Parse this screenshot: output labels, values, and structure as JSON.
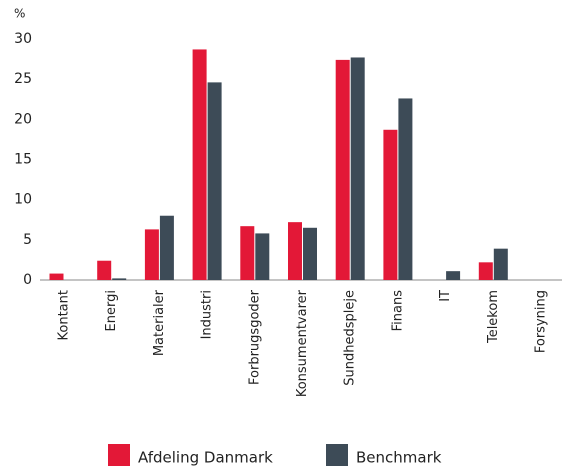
{
  "chart_data": {
    "type": "bar",
    "y_unit": "%",
    "categories": [
      "Kontant",
      "Energi",
      "Materialer",
      "Industri",
      "Forbrugsgoder",
      "Konsumentvarer",
      "Sundhedspleje",
      "Finans",
      "IT",
      "Telekom",
      "Forsyning"
    ],
    "series": [
      {
        "name": "Afdeling Danmark",
        "color": "#e31837",
        "values": [
          0.8,
          2.4,
          6.3,
          28.7,
          6.7,
          7.2,
          27.4,
          18.7,
          0,
          2.2,
          0
        ]
      },
      {
        "name": "Benchmark",
        "color": "#3d4b57",
        "values": [
          0,
          0.2,
          8.0,
          24.6,
          5.8,
          6.5,
          27.7,
          22.6,
          1.1,
          3.9,
          0
        ]
      }
    ],
    "ylim": [
      0,
      30
    ],
    "yticks": [
      0,
      5,
      10,
      15,
      20,
      25,
      30
    ],
    "grid": false,
    "legend": "bottom"
  }
}
